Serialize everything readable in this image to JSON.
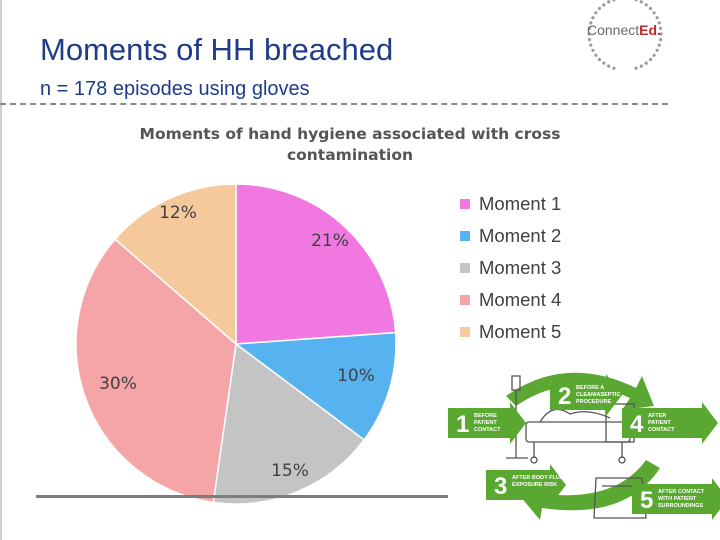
{
  "slide": {
    "title": "Moments of HH breached",
    "subtitle": "n = 178 episodes using gloves"
  },
  "logo": {
    "text_main": "Connect",
    "text_accent": "Ed."
  },
  "chart_data": {
    "type": "pie",
    "title": "Moments of hand hygiene associated with cross contamination",
    "categories": [
      "Moment 1",
      "Moment 2",
      "Moment 3",
      "Moment 4",
      "Moment 5"
    ],
    "values": [
      21,
      10,
      15,
      30,
      12
    ],
    "data_labels": [
      "21%",
      "10%",
      "15%",
      "30%",
      "12%"
    ],
    "colors": [
      "#f078e0",
      "#57b3f0",
      "#c4c4c4",
      "#f5a5a8",
      "#f5c99c"
    ],
    "start_angle_deg": 0,
    "direction": "clockwise",
    "legend_position": "right"
  },
  "diagram": {
    "icon": "five-moments-hand-hygiene-icon",
    "moments": [
      {
        "number": "1",
        "text": [
          "BEFORE",
          "PATIENT",
          "CONTACT"
        ]
      },
      {
        "number": "2",
        "text": [
          "BEFORE A",
          "CLEAN/ASEPTIC",
          "PROCEDURE"
        ]
      },
      {
        "number": "3",
        "text": [
          "AFTER BODY FLUID",
          "EXPOSURE RISK"
        ]
      },
      {
        "number": "4",
        "text": [
          "AFTER",
          "PATIENT",
          "CONTACT"
        ]
      },
      {
        "number": "5",
        "text": [
          "AFTER CONTACT",
          "WITH PATIENT",
          "SURROUNDINGS"
        ]
      }
    ],
    "arrow_color": "#5aa832"
  }
}
